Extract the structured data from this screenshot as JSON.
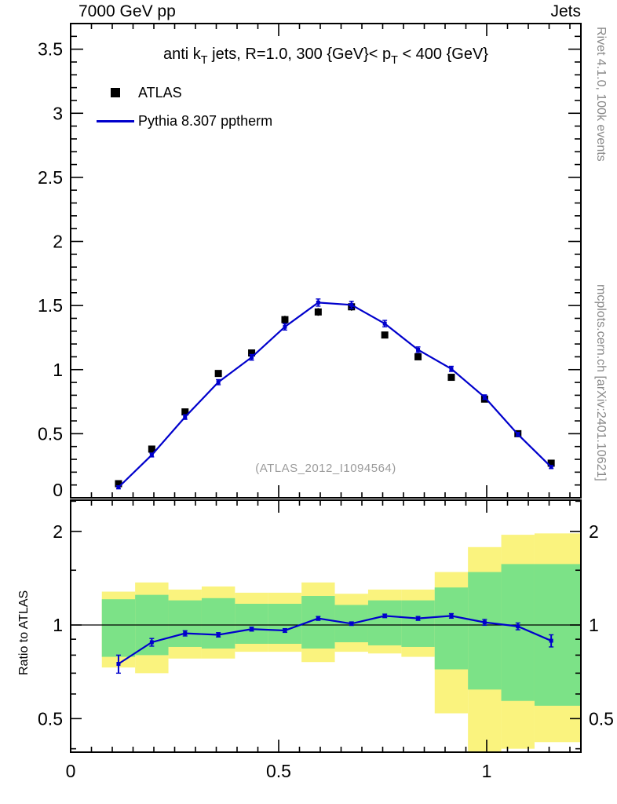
{
  "header": {
    "left": "7000 GeV pp",
    "right": "Jets"
  },
  "title": {
    "seg0": "anti k",
    "seg1": "T",
    "seg2": " jets, R=1.0,  300 {GeV}< p",
    "seg3": "T",
    "seg4": " < 400 {GeV}"
  },
  "legend": {
    "items": [
      {
        "label": "ATLAS",
        "marker": "black-square"
      },
      {
        "label": "Pythia 8.307 pptherm",
        "marker": "blue-line"
      }
    ]
  },
  "watermark": "(ATLAS_2012_I1094564)",
  "side_notes": {
    "top": "Rivet 4.1.0, 100k events",
    "bottom": "mcplots.cern.ch [arXiv:2401.10621]"
  },
  "colors": {
    "pythia_blue": "#0000cc",
    "atlas_black": "#000000",
    "band_yellow": "#faf37e",
    "band_green": "#7ce287",
    "watermark_gray": "#9b9b9b",
    "side_note_gray": "#888888"
  },
  "chart_data": {
    "type": "line",
    "title": "anti k_T jets, R=1.0, 300 {GeV} < p_T < 400 {GeV}",
    "x": [
      0.115,
      0.195,
      0.275,
      0.355,
      0.435,
      0.515,
      0.595,
      0.675,
      0.755,
      0.835,
      0.915,
      0.995,
      1.075,
      1.155
    ],
    "series": [
      {
        "name": "ATLAS",
        "style": "scatter-square",
        "color_key": "atlas_black",
        "values": [
          0.11,
          0.38,
          0.67,
          0.97,
          1.13,
          1.39,
          1.45,
          1.49,
          1.27,
          1.1,
          0.94,
          0.77,
          0.5,
          0.27
        ],
        "errors": [
          0.015,
          0.02,
          0.02,
          0.025,
          0.025,
          0.03,
          0.03,
          0.03,
          0.025,
          0.025,
          0.02,
          0.02,
          0.015,
          0.012
        ]
      },
      {
        "name": "Pythia 8.307 pptherm",
        "style": "line",
        "color_key": "pythia_blue",
        "values": [
          0.082,
          0.334,
          0.63,
          0.902,
          1.096,
          1.334,
          1.523,
          1.505,
          1.359,
          1.155,
          1.006,
          0.785,
          0.495,
          0.24
        ],
        "errors": [
          0.012,
          0.015,
          0.018,
          0.02,
          0.022,
          0.025,
          0.028,
          0.028,
          0.025,
          0.022,
          0.02,
          0.018,
          0.015,
          0.012
        ]
      }
    ],
    "main_axis": {
      "xlim": [
        0,
        1.2264
      ],
      "ylim": [
        0,
        3.7
      ],
      "xticks": [
        0,
        0.5,
        1
      ],
      "yticks": [
        0,
        0.5,
        1,
        1.5,
        2,
        2.5,
        3,
        3.5
      ],
      "x_minor_step": 0.05,
      "y_minor_step": 0.1,
      "grid": false,
      "legend_position": "top-left"
    },
    "ratio": {
      "ylabel": "Ratio to ATLAS",
      "yscale": "log",
      "ylim": [
        0.39,
        2.52
      ],
      "yticks": [
        0.5,
        1,
        2
      ],
      "yticks_minor": [
        0.4,
        0.6,
        0.7,
        0.8,
        0.9,
        1.5,
        2.5
      ],
      "values": [
        0.75,
        0.88,
        0.94,
        0.93,
        0.97,
        0.96,
        1.05,
        1.01,
        1.07,
        1.05,
        1.07,
        1.02,
        0.99,
        0.89
      ],
      "errors": [
        0.05,
        0.025,
        0.018,
        0.015,
        0.014,
        0.013,
        0.015,
        0.013,
        0.014,
        0.015,
        0.018,
        0.022,
        0.025,
        0.04
      ],
      "bands": {
        "bin_edges": [
          0.075,
          0.155,
          0.235,
          0.315,
          0.395,
          0.475,
          0.555,
          0.635,
          0.715,
          0.795,
          0.875,
          0.955,
          1.035,
          1.115,
          1.226
        ],
        "yellow_lo": [
          0.73,
          0.7,
          0.78,
          0.78,
          0.82,
          0.82,
          0.76,
          0.82,
          0.81,
          0.79,
          0.52,
          0.36,
          0.4,
          0.42
        ],
        "yellow_hi": [
          1.28,
          1.37,
          1.3,
          1.33,
          1.27,
          1.27,
          1.37,
          1.26,
          1.3,
          1.3,
          1.48,
          1.78,
          1.95,
          1.97
        ],
        "green_lo": [
          0.79,
          0.8,
          0.85,
          0.84,
          0.87,
          0.87,
          0.84,
          0.88,
          0.86,
          0.85,
          0.72,
          0.62,
          0.57,
          0.55
        ],
        "green_hi": [
          1.21,
          1.25,
          1.2,
          1.22,
          1.17,
          1.17,
          1.24,
          1.16,
          1.2,
          1.2,
          1.32,
          1.48,
          1.57,
          1.57
        ]
      }
    }
  }
}
